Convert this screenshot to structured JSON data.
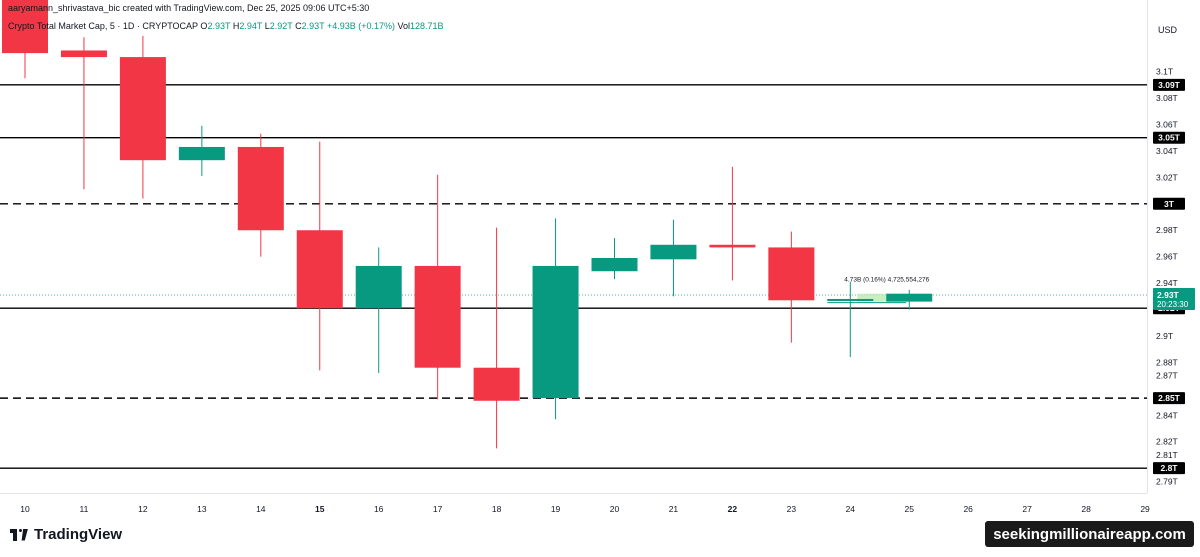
{
  "header": {
    "credit": "aaryamann_shrivastava_bic created with TradingView.com, Dec 25, 2025 09:06 UTC+5:30",
    "symbol": "Crypto Total Market Cap, 5 · 1D · CRYPTOCAP",
    "o_label": "O",
    "o_value": "2.93T",
    "h_label": "H",
    "h_value": "2.94T",
    "l_label": "L",
    "l_value": "2.92T",
    "c_label": "C",
    "c_value": "2.93T",
    "change": "+4.93B (+0.17%)",
    "vol_label": "Vol",
    "vol_value": "128.71B"
  },
  "brand": "TradingView",
  "watermark": "seekingmillionaireapp.com",
  "currency": "USD",
  "colors": {
    "up": "#089981",
    "down": "#f23645",
    "grid": "#e0e3eb",
    "axis_label": "#131722"
  },
  "chart_data": {
    "type": "candlestick",
    "ylim": [
      2.785,
      3.133
    ],
    "x_ticks": [
      "10",
      "11",
      "12",
      "13",
      "14",
      "15",
      "16",
      "17",
      "18",
      "19",
      "20",
      "21",
      "22",
      "23",
      "24",
      "25",
      "26",
      "27",
      "28",
      "29"
    ],
    "x_ticks_bold": [
      "15",
      "22"
    ],
    "y_ticks": [
      "3.1T",
      "3.08T",
      "3.06T",
      "3.04T",
      "3.02T",
      "2.98T",
      "2.96T",
      "2.94T",
      "2.9T",
      "2.88T",
      "2.87T",
      "2.84T",
      "2.82T",
      "2.81T",
      "2.79T"
    ],
    "candles": [
      {
        "day": "10",
        "open": 3.162,
        "high": 3.175,
        "low": 3.095,
        "close": 3.114
      },
      {
        "day": "11",
        "open": 3.116,
        "high": 3.126,
        "low": 3.011,
        "close": 3.111
      },
      {
        "day": "12",
        "open": 3.111,
        "high": 3.127,
        "low": 3.004,
        "close": 3.033
      },
      {
        "day": "13",
        "open": 3.033,
        "high": 3.059,
        "low": 3.021,
        "close": 3.043
      },
      {
        "day": "14",
        "open": 3.043,
        "high": 3.053,
        "low": 2.96,
        "close": 2.98
      },
      {
        "day": "15",
        "open": 2.98,
        "high": 3.047,
        "low": 2.874,
        "close": 2.921
      },
      {
        "day": "16",
        "open": 2.921,
        "high": 2.967,
        "low": 2.872,
        "close": 2.953
      },
      {
        "day": "17",
        "open": 2.953,
        "high": 3.022,
        "low": 2.852,
        "close": 2.876
      },
      {
        "day": "18",
        "open": 2.876,
        "high": 2.982,
        "low": 2.815,
        "close": 2.851
      },
      {
        "day": "19",
        "open": 2.853,
        "high": 2.989,
        "low": 2.837,
        "close": 2.953
      },
      {
        "day": "20",
        "open": 2.949,
        "high": 2.974,
        "low": 2.943,
        "close": 2.959
      },
      {
        "day": "21",
        "open": 2.958,
        "high": 2.988,
        "low": 2.93,
        "close": 2.969
      },
      {
        "day": "22",
        "open": 2.969,
        "high": 3.028,
        "low": 2.942,
        "close": 2.967
      },
      {
        "day": "23",
        "open": 2.967,
        "high": 2.979,
        "low": 2.895,
        "close": 2.927
      },
      {
        "day": "24",
        "open": 2.927,
        "high": 2.941,
        "low": 2.884,
        "close": 2.928
      },
      {
        "day": "25",
        "open": 2.926,
        "high": 2.935,
        "low": 2.92,
        "close": 2.932
      }
    ],
    "levels": [
      {
        "label": "3.09T",
        "value": 3.09,
        "style": "solid"
      },
      {
        "label": "3.05T",
        "value": 3.05,
        "style": "solid"
      },
      {
        "label": "3T",
        "value": 3.0,
        "style": "dashed"
      },
      {
        "label": "2.92T",
        "value": 2.921,
        "style": "solid"
      },
      {
        "label": "2.85T",
        "value": 2.853,
        "style": "dashed"
      },
      {
        "label": "2.8T",
        "value": 2.8,
        "style": "solid"
      }
    ],
    "price_line": {
      "value": 2.931,
      "label": "2.93T",
      "countdown": "20:23:30"
    },
    "projection": {
      "from_day": "24",
      "to_day": "25",
      "low": 2.926,
      "high": 2.932,
      "label": "4.73B (0.16%) 4,725,554,276"
    }
  }
}
